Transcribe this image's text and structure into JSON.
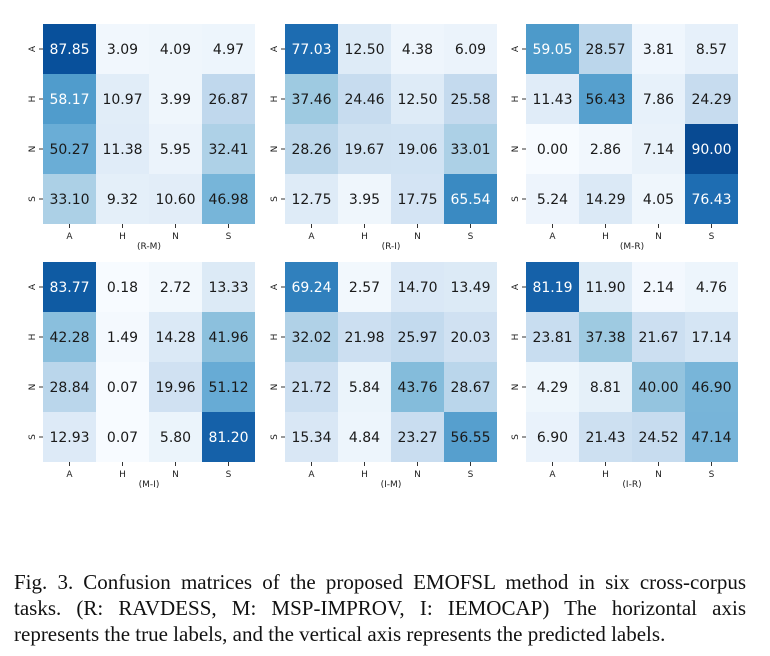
{
  "figure": {
    "caption_label": "Fig. 3.",
    "caption_text": "Confusion matrices of the proposed EMOFSL method in six cross-corpus tasks. (R: RAVDESS, M: MSP-IMPROV, I: IEMOCAP) The horizontal axis represents the true labels, and the vertical axis represents the predicted labels."
  },
  "colormap": [
    "#f7fbff",
    "#deebf7",
    "#c6dbef",
    "#9ecae1",
    "#6baed6",
    "#4292c6",
    "#2171b5",
    "#08519c",
    "#08306b"
  ],
  "chart_data": [
    {
      "type": "heatmap",
      "title": "",
      "xlabel": "(R-M)",
      "ylabel": "",
      "categories_x": [
        "A",
        "H",
        "N",
        "S"
      ],
      "categories_y": [
        "A",
        "H",
        "N",
        "S"
      ],
      "vmin": 0,
      "vmax": 100,
      "values": [
        [
          87.85,
          3.09,
          4.09,
          4.97
        ],
        [
          58.17,
          10.97,
          3.99,
          26.87
        ],
        [
          50.27,
          11.38,
          5.95,
          32.41
        ],
        [
          33.1,
          9.32,
          10.6,
          46.98
        ]
      ]
    },
    {
      "type": "heatmap",
      "title": "",
      "xlabel": "(R-I)",
      "ylabel": "",
      "categories_x": [
        "A",
        "H",
        "N",
        "S"
      ],
      "categories_y": [
        "A",
        "H",
        "N",
        "S"
      ],
      "vmin": 0,
      "vmax": 100,
      "values": [
        [
          77.03,
          12.5,
          4.38,
          6.09
        ],
        [
          37.46,
          24.46,
          12.5,
          25.58
        ],
        [
          28.26,
          19.67,
          19.06,
          33.01
        ],
        [
          12.75,
          3.95,
          17.75,
          65.54
        ]
      ]
    },
    {
      "type": "heatmap",
      "title": "",
      "xlabel": "(M-R)",
      "ylabel": "",
      "categories_x": [
        "A",
        "H",
        "N",
        "S"
      ],
      "categories_y": [
        "A",
        "H",
        "N",
        "S"
      ],
      "vmin": 0,
      "vmax": 100,
      "values": [
        [
          59.05,
          28.57,
          3.81,
          8.57
        ],
        [
          11.43,
          56.43,
          7.86,
          24.29
        ],
        [
          0.0,
          2.86,
          7.14,
          90.0
        ],
        [
          5.24,
          14.29,
          4.05,
          76.43
        ]
      ]
    },
    {
      "type": "heatmap",
      "title": "",
      "xlabel": "(M-I)",
      "ylabel": "",
      "categories_x": [
        "A",
        "H",
        "N",
        "S"
      ],
      "categories_y": [
        "A",
        "H",
        "N",
        "S"
      ],
      "vmin": 0,
      "vmax": 100,
      "values": [
        [
          83.77,
          0.18,
          2.72,
          13.33
        ],
        [
          42.28,
          1.49,
          14.28,
          41.96
        ],
        [
          28.84,
          0.07,
          19.96,
          51.12
        ],
        [
          12.93,
          0.07,
          5.8,
          81.2
        ]
      ]
    },
    {
      "type": "heatmap",
      "title": "",
      "xlabel": "(I-M)",
      "ylabel": "",
      "categories_x": [
        "A",
        "H",
        "N",
        "S"
      ],
      "categories_y": [
        "A",
        "H",
        "N",
        "S"
      ],
      "vmin": 0,
      "vmax": 100,
      "values": [
        [
          69.24,
          2.57,
          14.7,
          13.49
        ],
        [
          32.02,
          21.98,
          25.97,
          20.03
        ],
        [
          21.72,
          5.84,
          43.76,
          28.67
        ],
        [
          15.34,
          4.84,
          23.27,
          56.55
        ]
      ]
    },
    {
      "type": "heatmap",
      "title": "",
      "xlabel": "(I-R)",
      "ylabel": "",
      "categories_x": [
        "A",
        "H",
        "N",
        "S"
      ],
      "categories_y": [
        "A",
        "H",
        "N",
        "S"
      ],
      "vmin": 0,
      "vmax": 100,
      "values": [
        [
          81.19,
          11.9,
          2.14,
          4.76
        ],
        [
          23.81,
          37.38,
          21.67,
          17.14
        ],
        [
          4.29,
          8.81,
          40.0,
          46.9
        ],
        [
          6.9,
          21.43,
          24.52,
          47.14
        ]
      ]
    }
  ]
}
